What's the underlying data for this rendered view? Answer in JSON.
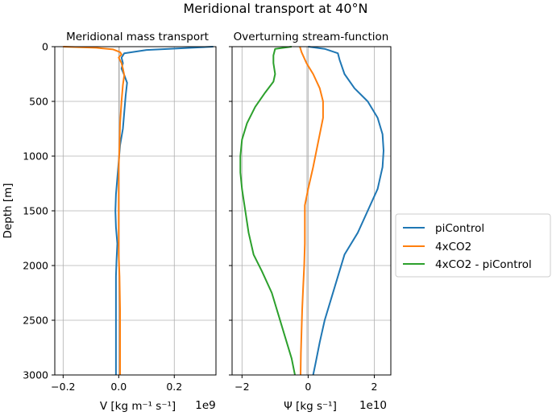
{
  "title": "Meridional transport at 40°N",
  "ylabel": "Depth [m]",
  "colors": {
    "piControl": "#1f77b4",
    "4xCO2": "#ff7f0e",
    "diff": "#2ca02c",
    "grid": "#b0b0b0"
  },
  "legend": {
    "entries": [
      "piControl",
      "4xCO2",
      "4xCO2 - piControl"
    ]
  },
  "chart_data": [
    {
      "type": "line",
      "title": "Meridional mass transport",
      "xlabel": "V [kg m⁻¹ s⁻¹]",
      "offset_label": "1e9",
      "xlim": [
        -0.23,
        0.35
      ],
      "ylim": [
        3000,
        0
      ],
      "xticks": [
        -0.2,
        0.0,
        0.2
      ],
      "xtick_labels": [
        "−0.2",
        "0.0",
        "0.2"
      ],
      "yticks": [
        0,
        500,
        1000,
        1500,
        2000,
        2500,
        3000
      ],
      "ytick_labels": [
        "0",
        "500",
        "1000",
        "1500",
        "2000",
        "2500",
        "3000"
      ],
      "grid": true,
      "series": [
        {
          "name": "piControl",
          "color": "#1f77b4",
          "points": [
            [
              0.34,
              0
            ],
            [
              0.1,
              30
            ],
            [
              0.02,
              60
            ],
            [
              0.01,
              100
            ],
            [
              0.015,
              150
            ],
            [
              0.01,
              200
            ],
            [
              0.02,
              260
            ],
            [
              0.03,
              330
            ],
            [
              0.025,
              450
            ],
            [
              0.02,
              600
            ],
            [
              0.015,
              750
            ],
            [
              0.005,
              900
            ],
            [
              0.0,
              1050
            ],
            [
              -0.005,
              1200
            ],
            [
              -0.01,
              1350
            ],
            [
              -0.012,
              1500
            ],
            [
              -0.01,
              1650
            ],
            [
              -0.005,
              1800
            ],
            [
              -0.008,
              1950
            ],
            [
              -0.01,
              2100
            ],
            [
              -0.01,
              2400
            ],
            [
              -0.01,
              2700
            ],
            [
              -0.01,
              3000
            ]
          ]
        },
        {
          "name": "4xCO2",
          "color": "#ff7f0e",
          "points": [
            [
              -0.2,
              0
            ],
            [
              -0.08,
              10
            ],
            [
              -0.02,
              25
            ],
            [
              0.005,
              50
            ],
            [
              0.01,
              70
            ],
            [
              0.0,
              100
            ],
            [
              0.01,
              150
            ],
            [
              0.015,
              200
            ],
            [
              0.02,
              260
            ],
            [
              0.015,
              350
            ],
            [
              0.01,
              500
            ],
            [
              0.005,
              700
            ],
            [
              0.003,
              900
            ],
            [
              0.0,
              1100
            ],
            [
              0.0,
              1300
            ],
            [
              0.0,
              1500
            ],
            [
              0.0,
              1700
            ],
            [
              0.0,
              1900
            ],
            [
              0.003,
              2100
            ],
            [
              0.005,
              2400
            ],
            [
              0.005,
              2700
            ],
            [
              0.005,
              3000
            ]
          ]
        }
      ]
    },
    {
      "type": "line",
      "title": "Overturning stream-function",
      "xlabel": "Ψ [kg s⁻¹]",
      "offset_label": "1e10",
      "xlim": [
        -2.3,
        2.5
      ],
      "ylim": [
        3000,
        0
      ],
      "xticks": [
        -2,
        0,
        2
      ],
      "xtick_labels": [
        "−2",
        "0",
        "2"
      ],
      "yticks": [
        0,
        500,
        1000,
        1500,
        2000,
        2500,
        3000
      ],
      "grid": true,
      "series": [
        {
          "name": "piControl",
          "color": "#1f77b4",
          "points": [
            [
              0.0,
              0
            ],
            [
              0.5,
              20
            ],
            [
              0.9,
              60
            ],
            [
              0.95,
              120
            ],
            [
              1.1,
              250
            ],
            [
              1.4,
              380
            ],
            [
              1.8,
              500
            ],
            [
              2.1,
              650
            ],
            [
              2.25,
              800
            ],
            [
              2.28,
              950
            ],
            [
              2.25,
              1100
            ],
            [
              2.1,
              1300
            ],
            [
              1.8,
              1500
            ],
            [
              1.5,
              1700
            ],
            [
              1.1,
              1900
            ],
            [
              0.9,
              2100
            ],
            [
              0.7,
              2300
            ],
            [
              0.5,
              2500
            ],
            [
              0.35,
              2700
            ],
            [
              0.22,
              2900
            ],
            [
              0.15,
              3000
            ]
          ]
        },
        {
          "name": "4xCO2",
          "color": "#ff7f0e",
          "points": [
            [
              -0.25,
              0
            ],
            [
              -0.2,
              50
            ],
            [
              -0.05,
              150
            ],
            [
              0.15,
              250
            ],
            [
              0.35,
              380
            ],
            [
              0.45,
              500
            ],
            [
              0.45,
              650
            ],
            [
              0.35,
              800
            ],
            [
              0.25,
              950
            ],
            [
              0.15,
              1100
            ],
            [
              0.0,
              1300
            ],
            [
              -0.1,
              1450
            ],
            [
              -0.1,
              1600
            ],
            [
              -0.1,
              1800
            ],
            [
              -0.12,
              2000
            ],
            [
              -0.15,
              2200
            ],
            [
              -0.18,
              2400
            ],
            [
              -0.2,
              2600
            ],
            [
              -0.22,
              2800
            ],
            [
              -0.23,
              3000
            ]
          ]
        },
        {
          "name": "4xCO2 - piControl",
          "color": "#2ca02c",
          "points": [
            [
              -0.5,
              0
            ],
            [
              -1.0,
              20
            ],
            [
              -1.05,
              80
            ],
            [
              -1.05,
              150
            ],
            [
              -1.0,
              250
            ],
            [
              -1.05,
              320
            ],
            [
              -1.3,
              420
            ],
            [
              -1.6,
              550
            ],
            [
              -1.85,
              700
            ],
            [
              -2.0,
              850
            ],
            [
              -2.05,
              1000
            ],
            [
              -2.05,
              1150
            ],
            [
              -2.0,
              1300
            ],
            [
              -1.9,
              1500
            ],
            [
              -1.8,
              1700
            ],
            [
              -1.65,
              1900
            ],
            [
              -1.4,
              2050
            ],
            [
              -1.1,
              2250
            ],
            [
              -0.9,
              2450
            ],
            [
              -0.7,
              2650
            ],
            [
              -0.5,
              2850
            ],
            [
              -0.4,
              3000
            ]
          ]
        }
      ]
    }
  ]
}
